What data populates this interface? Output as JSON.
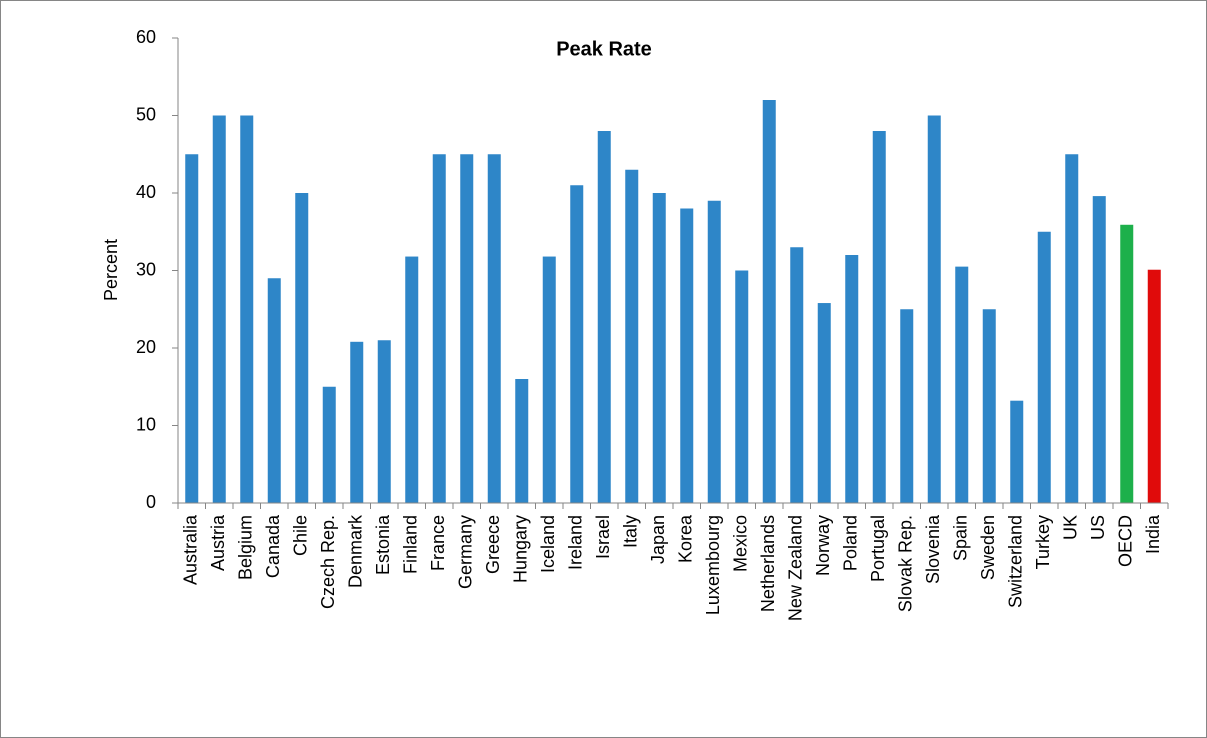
{
  "chart_data": {
    "type": "bar",
    "title": "Peak Rate",
    "y_label": "Percent",
    "categories": [
      "Australia",
      "Austria",
      "Belgium",
      "Canada",
      "Chile",
      "Czech Rep.",
      "Denmark",
      "Estonia",
      "Finland",
      "France",
      "Germany",
      "Greece",
      "Hungary",
      "Iceland",
      "Ireland",
      "Israel",
      "Italy",
      "Japan",
      "Korea",
      "Luxembourg",
      "Mexico",
      "Netherlands",
      "New Zealand",
      "Norway",
      "Poland",
      "Portugal",
      "Slovak Rep.",
      "Slovenia",
      "Spain",
      "Sweden",
      "Switzerland",
      "Turkey",
      "UK",
      "US",
      "OECD",
      "India"
    ],
    "values": [
      45,
      50,
      50,
      29,
      40,
      15,
      20.8,
      21,
      31.8,
      45,
      45,
      45,
      16,
      31.8,
      41,
      48,
      43,
      40,
      38,
      39,
      30,
      52,
      33,
      25.8,
      32,
      48,
      25,
      50,
      30.5,
      25,
      13.2,
      35,
      45,
      39.6,
      35.9,
      30.1
    ],
    "colors": [
      "#2e86c8",
      "#2e86c8",
      "#2e86c8",
      "#2e86c8",
      "#2e86c8",
      "#2e86c8",
      "#2e86c8",
      "#2e86c8",
      "#2e86c8",
      "#2e86c8",
      "#2e86c8",
      "#2e86c8",
      "#2e86c8",
      "#2e86c8",
      "#2e86c8",
      "#2e86c8",
      "#2e86c8",
      "#2e86c8",
      "#2e86c8",
      "#2e86c8",
      "#2e86c8",
      "#2e86c8",
      "#2e86c8",
      "#2e86c8",
      "#2e86c8",
      "#2e86c8",
      "#2e86c8",
      "#2e86c8",
      "#2e86c8",
      "#2e86c8",
      "#2e86c8",
      "#2e86c8",
      "#2e86c8",
      "#2e86c8",
      "#1db04b",
      "#e00b0b"
    ],
    "ylim": [
      0,
      60
    ],
    "yticks": [
      0,
      10,
      20,
      30,
      40,
      50,
      60
    ],
    "grid": false
  }
}
